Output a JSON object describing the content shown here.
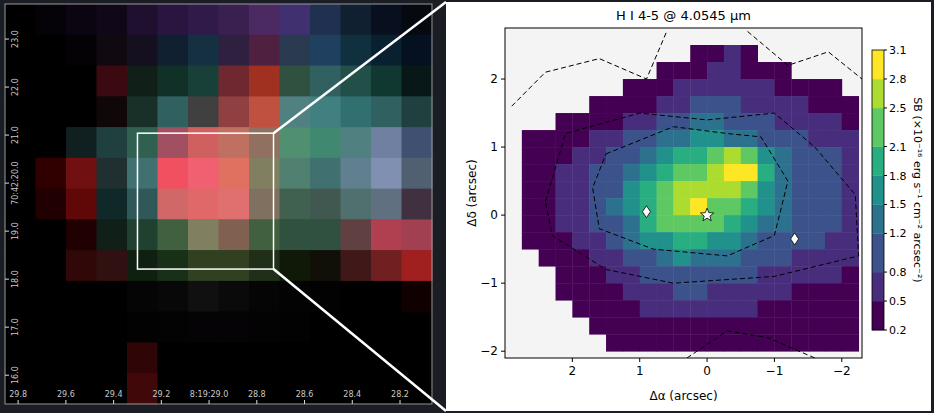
{
  "chart_data": [
    {
      "type": "image",
      "xlim": [
        29.855,
        28.066
      ],
      "ylim": [
        15.4,
        23.73
      ],
      "xticks": [
        29.8,
        29.6,
        29.4,
        29.2,
        {
          "value": 29.0,
          "label": "8:19:29.0"
        },
        28.8,
        28.6,
        28.4,
        28.2
      ],
      "yticks": [
        {
          "value": 23,
          "label": "23.0"
        },
        {
          "value": 22,
          "label": "22.0"
        },
        {
          "value": 21,
          "label": "21.0"
        },
        {
          "value": 20,
          "label": "70:42:20.0"
        },
        {
          "value": 19,
          "label": "19.0"
        },
        {
          "value": 18,
          "label": "18.0"
        },
        {
          "value": 17,
          "label": "17.0"
        },
        {
          "value": 16,
          "label": "16.0"
        }
      ],
      "box": {
        "x": [
          29.3,
          28.73
        ],
        "y": [
          21.04,
          18.21
        ]
      },
      "cells": [
        [
          "#000000",
          "#050308",
          "#0a0510",
          "#100818",
          "#201030",
          "#2a1540",
          "#301a4a",
          "#3a2050",
          "#4a2a60",
          "#403070",
          "#203050",
          "#102030",
          "#081020",
          "#050a10"
        ],
        [
          "#000000",
          "#000000",
          "#050205",
          "#100a10",
          "#151020",
          "#102030",
          "#153040",
          "#302040",
          "#502040",
          "#2a3a50",
          "#204060",
          "#103040",
          "#082030",
          "#051020"
        ],
        [
          "#000000",
          "#000000",
          "#000000",
          "#3a0a10",
          "#102018",
          "#103028",
          "#184038",
          "#702830",
          "#a03020",
          "#305040",
          "#306060",
          "#205048",
          "#103830",
          "#081818"
        ],
        [
          "#000000",
          "#000000",
          "#000000",
          "#100808",
          "#183028",
          "#306060",
          "#404040",
          "#904040",
          "#c05040",
          "#508080",
          "#408080",
          "#307070",
          "#306060",
          "#204040"
        ],
        [
          "#000000",
          "#000000",
          "#102020",
          "#204040",
          "#306050",
          "#a05060",
          "#d06060",
          "#c07060",
          "#907060",
          "#509070",
          "#408870",
          "#508080",
          "#7080a0",
          "#405070"
        ],
        [
          "#000000",
          "#300000",
          "#701010",
          "#203030",
          "#407070",
          "#f05060",
          "#f06070",
          "#e07060",
          "#808060",
          "#508070",
          "#407070",
          "#608090",
          "#8090b0",
          "#506070"
        ],
        [
          "#000000",
          "#200000",
          "#600808",
          "#102828",
          "#305858",
          "#d06868",
          "#e06868",
          "#e07070",
          "#807060",
          "#406050",
          "#405850",
          "#507070",
          "#607080",
          "#403040"
        ],
        [
          "#000000",
          "#000000",
          "#200000",
          "#102018",
          "#204030",
          "#406040",
          "#808060",
          "#806050",
          "#406040",
          "#305040",
          "#305040",
          "#604040",
          "#b04050",
          "#a04050"
        ],
        [
          "#000000",
          "#000000",
          "#300808",
          "#301010",
          "#102010",
          "#183018",
          "#304020",
          "#304020",
          "#203018",
          "#101808",
          "#101008",
          "#401818",
          "#702020",
          "#a02020"
        ],
        [
          "#000000",
          "#000000",
          "#000000",
          "#000000",
          "#050505",
          "#080808",
          "#101010",
          "#0a0a0a",
          "#050505",
          "#030303",
          "#020202",
          "#000000",
          "#000000",
          "#100000"
        ],
        [
          "#000000",
          "#000000",
          "#000000",
          "#000000",
          "#020202",
          "#030303",
          "#060306",
          "#050305",
          "#030303",
          "#020202",
          "#000000",
          "#000000",
          "#000000",
          "#000000"
        ],
        [
          "#000000",
          "#000000",
          "#000000",
          "#000000",
          "#300505",
          "#000000",
          "#000000",
          "#000000",
          "#000000",
          "#000000",
          "#000000",
          "#000000",
          "#000000",
          "#000000"
        ],
        [
          "#000000",
          "#000000",
          "#000000",
          "#000000",
          "#400808",
          "#000000",
          "#000000",
          "#000000",
          "#000000",
          "#000000",
          "#000000",
          "#000000",
          "#000000",
          "#000000"
        ]
      ]
    },
    {
      "type": "heatmap",
      "title": "H I 4-5 @ 4.0545 μm",
      "x_label": "Δα (arcsec)",
      "y_label": "Δδ (arcsec)",
      "xlim": [
        3.0,
        -2.3
      ],
      "ylim": [
        -2.1,
        2.75
      ],
      "xticks": [
        2,
        1,
        0,
        {
          "value": -1,
          "label": "−1"
        },
        {
          "value": -2,
          "label": "−2"
        }
      ],
      "yticks": [
        {
          "value": -2,
          "label": "−2"
        },
        {
          "value": -1,
          "label": "−1"
        },
        0,
        1,
        2
      ],
      "color": "viridis",
      "colorbar_lim": [
        0.2,
        3.1
      ],
      "colorbar_ticks": [
        0.2,
        0.5,
        0.8,
        1.2,
        1.5,
        1.8,
        2.1,
        2.5,
        2.8,
        3.1
      ],
      "colorbar_label": "SB (×10⁻¹⁶ erg s⁻¹ cm⁻² arcsec⁻²)",
      "x_edges": [
        2.75,
        2.5,
        2.25,
        2.0,
        1.75,
        1.5,
        1.25,
        1.0,
        0.75,
        0.5,
        0.25,
        0.0,
        -0.25,
        -0.5,
        -0.75,
        -1.0,
        -1.25,
        -1.5,
        -1.75,
        -2.0,
        -2.25
      ],
      "y_edges": [
        2.5,
        2.25,
        2.0,
        1.75,
        1.5,
        1.25,
        1.0,
        0.75,
        0.5,
        0.25,
        0.0,
        -0.25,
        -0.5,
        -0.75,
        -1.0,
        -1.25,
        -1.5,
        -1.75,
        -2.0
      ],
      "cells": [
        [
          null,
          null,
          null,
          null,
          null,
          null,
          null,
          null,
          null,
          null,
          0.4,
          0.4,
          0.5,
          0.4,
          null,
          null,
          null,
          null,
          null,
          null
        ],
        [
          null,
          null,
          null,
          null,
          null,
          null,
          null,
          null,
          0.3,
          0.4,
          0.4,
          0.5,
          0.5,
          0.4,
          0.4,
          0.4,
          null,
          null,
          null,
          null
        ],
        [
          null,
          null,
          null,
          null,
          null,
          null,
          0.3,
          0.3,
          0.4,
          0.5,
          0.6,
          0.7,
          0.6,
          0.5,
          0.5,
          0.4,
          0.4,
          0.3,
          0.3,
          null
        ],
        [
          null,
          null,
          null,
          null,
          0.3,
          0.3,
          0.3,
          0.4,
          0.5,
          0.7,
          0.9,
          1.0,
          0.9,
          0.7,
          0.6,
          0.5,
          0.5,
          0.4,
          0.4,
          0.3
        ],
        [
          null,
          null,
          0.3,
          0.3,
          0.3,
          0.4,
          0.5,
          0.7,
          0.9,
          1.1,
          1.2,
          1.2,
          1.1,
          0.9,
          0.8,
          0.7,
          0.6,
          0.5,
          0.5,
          0.4
        ],
        [
          0.3,
          0.3,
          0.3,
          0.4,
          0.5,
          0.6,
          0.8,
          1.0,
          1.3,
          1.4,
          1.5,
          1.5,
          1.4,
          1.3,
          1.1,
          0.9,
          0.8,
          0.7,
          0.6,
          0.5
        ],
        [
          0.3,
          0.3,
          0.4,
          0.5,
          0.6,
          0.8,
          1.1,
          1.4,
          1.7,
          1.9,
          2.0,
          2.2,
          2.5,
          2.3,
          1.6,
          1.2,
          1.0,
          0.9,
          0.8,
          0.6
        ],
        [
          0.3,
          0.4,
          0.5,
          0.6,
          0.8,
          1.0,
          1.3,
          1.7,
          2.0,
          2.3,
          2.4,
          2.6,
          2.9,
          2.8,
          1.8,
          1.3,
          1.1,
          1.0,
          0.9,
          0.7
        ],
        [
          0.3,
          0.4,
          0.5,
          0.7,
          0.9,
          1.1,
          1.5,
          2.0,
          2.4,
          2.7,
          2.6,
          2.5,
          2.7,
          2.4,
          1.7,
          1.3,
          1.1,
          1.0,
          0.9,
          0.7
        ],
        [
          0.3,
          0.4,
          0.5,
          0.7,
          0.9,
          1.2,
          1.5,
          1.9,
          2.3,
          2.6,
          2.8,
          2.4,
          2.1,
          1.9,
          1.5,
          1.2,
          1.1,
          1.0,
          0.9,
          0.7
        ],
        [
          0.3,
          0.4,
          0.5,
          0.6,
          0.8,
          1.1,
          1.4,
          1.8,
          2.1,
          2.2,
          2.3,
          2.1,
          1.8,
          1.5,
          1.3,
          1.2,
          1.0,
          0.9,
          0.8,
          0.6
        ],
        [
          0.3,
          0.3,
          0.4,
          0.5,
          0.7,
          0.9,
          1.2,
          1.5,
          1.7,
          1.9,
          1.9,
          1.7,
          1.5,
          1.3,
          1.1,
          1.0,
          0.9,
          0.8,
          0.7,
          0.6
        ],
        [
          null,
          0.3,
          0.3,
          0.4,
          0.5,
          0.7,
          0.9,
          1.1,
          1.3,
          1.5,
          1.4,
          1.3,
          1.2,
          1.0,
          0.9,
          0.8,
          0.7,
          0.6,
          0.6,
          0.5
        ],
        [
          null,
          null,
          0.3,
          0.3,
          0.4,
          0.5,
          0.7,
          0.8,
          1.0,
          1.1,
          1.0,
          1.0,
          0.9,
          0.8,
          0.7,
          0.6,
          0.5,
          0.5,
          0.5,
          0.4
        ],
        [
          null,
          null,
          0.3,
          0.3,
          0.3,
          0.4,
          0.5,
          0.6,
          0.7,
          0.8,
          0.8,
          0.7,
          0.7,
          0.6,
          0.5,
          0.5,
          0.4,
          0.4,
          0.4,
          0.4
        ],
        [
          null,
          null,
          null,
          0.3,
          0.3,
          0.3,
          0.4,
          0.5,
          0.5,
          0.6,
          0.6,
          0.5,
          0.5,
          0.5,
          0.4,
          0.4,
          0.4,
          0.3,
          0.3,
          0.3
        ],
        [
          null,
          null,
          null,
          null,
          0.3,
          0.3,
          0.3,
          0.4,
          0.4,
          0.4,
          0.4,
          0.4,
          0.4,
          0.4,
          0.3,
          0.3,
          0.3,
          0.3,
          0.3,
          0.3
        ],
        [
          null,
          null,
          null,
          null,
          null,
          0.3,
          0.3,
          0.3,
          0.3,
          0.3,
          0.3,
          0.3,
          0.3,
          0.3,
          0.3,
          0.3,
          0.3,
          0.3,
          0.3,
          0.3
        ]
      ],
      "contours": [
        {
          "x": [
            1.5,
            0.5,
            -0.3,
            -0.8,
            -1.2,
            -1.0,
            -0.3,
            0.8,
            1.6,
            1.7,
            1.5
          ],
          "y": [
            0.9,
            1.3,
            1.2,
            1.15,
            0.5,
            -0.3,
            -0.6,
            -0.5,
            -0.2,
            0.4,
            0.9
          ]
        },
        {
          "x": [
            2.4,
            2.1,
            1.0,
            0.0,
            -1.0,
            -1.6,
            -2.2,
            -2.25,
            -1.0,
            0.5,
            1.5,
            2.3,
            2.4
          ],
          "y": [
            0.2,
            1.2,
            1.5,
            1.4,
            1.5,
            1.0,
            0.3,
            -0.6,
            -0.9,
            -1.0,
            -0.8,
            -0.3,
            0.2
          ]
        },
        {
          "x": [
            2.9,
            2.4,
            1.6,
            0.9,
            0.6
          ],
          "y": [
            1.6,
            2.1,
            2.3,
            2.0,
            2.7
          ]
        },
        {
          "x": [
            -0.6,
            -1.2,
            -1.8,
            -2.3
          ],
          "y": [
            2.7,
            2.2,
            2.4,
            2.0
          ]
        },
        {
          "x": [
            0.3,
            -0.3,
            -0.9,
            -1.6
          ],
          "y": [
            -2.1,
            -1.7,
            -1.8,
            -2.1
          ]
        }
      ],
      "points": [
        {
          "x": [
            0
          ],
          "y": [
            0
          ],
          "marker": "star"
        },
        {
          "x": [
            0.9,
            -1.3
          ],
          "y": [
            0.05,
            -0.35
          ],
          "marker": "diamond"
        }
      ]
    }
  ]
}
